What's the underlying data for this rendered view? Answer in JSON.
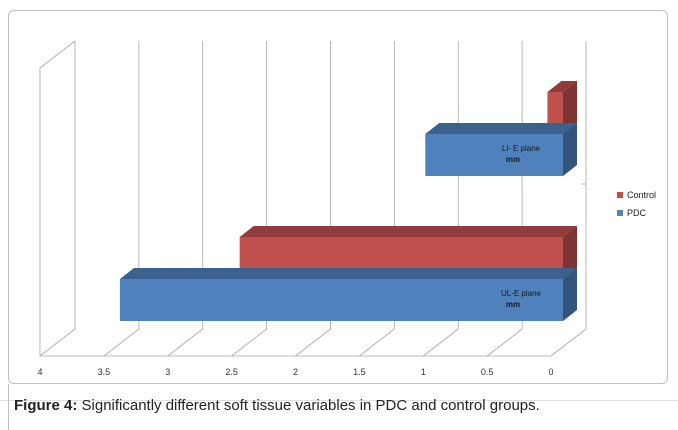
{
  "chart_data": {
    "type": "bar",
    "orientation": "horizontal",
    "three_d": true,
    "x_reversed": true,
    "categories": [
      "UL-E plane mm",
      "Ll- E plane mm"
    ],
    "category_labels": [
      {
        "line1": "UL-E plane",
        "line2": "mm"
      },
      {
        "line1": "Ll- E plane",
        "line2": "mm"
      }
    ],
    "series": [
      {
        "name": "PDC",
        "color": "#4f81bd",
        "values": [
          3.7,
          1.15
        ]
      },
      {
        "name": "Control",
        "color": "#c0504d",
        "values": [
          2.7,
          0.13
        ]
      }
    ],
    "x_ticks": [
      4,
      3.5,
      3,
      2.5,
      2,
      1.5,
      1,
      0.5,
      0
    ],
    "x_tick_labels": [
      "4",
      "3.5",
      "3",
      "2.5",
      "2",
      "1.5",
      "1",
      "0.5",
      "0"
    ],
    "xlim": [
      0,
      4
    ],
    "grid": true,
    "legend_position": "right",
    "legend_order": [
      "Control",
      "PDC"
    ],
    "title": "",
    "xlabel": "",
    "ylabel": ""
  },
  "caption": {
    "label": "Figure 4:",
    "text": " Significantly different soft tissue variables in PDC and control groups."
  }
}
